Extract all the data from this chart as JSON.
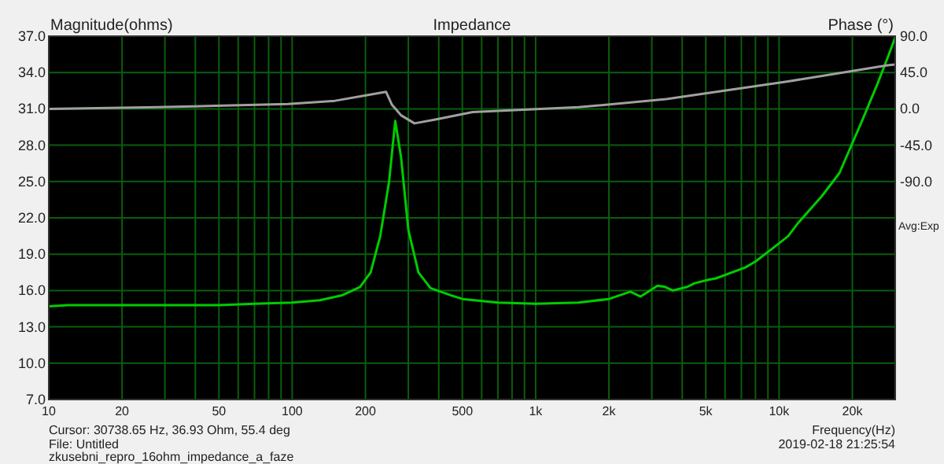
{
  "chart_data": {
    "type": "line",
    "title": "Impedance",
    "ylabel": "Magnitude(ohms)",
    "y2label": "Phase (°)",
    "xlabel": "Frequency(Hz)",
    "annotations": [
      "Cursor: 30738.65 Hz, 36.93 Ohm, 55.4 deg",
      "File: Untitled",
      "zkusebni_repro_16ohm_impedance_a_faze",
      "2019-02-18 21:25:54",
      "Avg:Exp"
    ],
    "series": [
      {
        "color": "#00cc00",
        "x": [
          10,
          12,
          20,
          50,
          70,
          100,
          130,
          160,
          190,
          210,
          230,
          250,
          265,
          280,
          300,
          330,
          370,
          450,
          500,
          700,
          1000,
          1500,
          2000,
          2450,
          2700,
          3170,
          3400,
          3660,
          4200,
          4500,
          5160,
          5500,
          7260,
          8000,
          10000,
          10900,
          12000,
          15000,
          17700,
          21900,
          25400,
          27900,
          30000
        ],
        "values": [
          14.7,
          14.8,
          14.8,
          14.8,
          14.9,
          15.0,
          15.2,
          15.6,
          16.3,
          17.5,
          20.5,
          25.0,
          30.0,
          27.0,
          21.0,
          17.5,
          16.2,
          15.6,
          15.3,
          15.0,
          14.9,
          15.0,
          15.3,
          15.9,
          15.5,
          16.4,
          16.3,
          16.0,
          16.3,
          16.6,
          16.9,
          17.0,
          17.9,
          18.4,
          19.9,
          20.5,
          21.6,
          23.8,
          25.7,
          30.0,
          33.1,
          35.2,
          36.9
        ]
      },
      {
        "color": "#a0a0a0",
        "axis": "y2",
        "x": [
          10,
          28,
          96,
          150,
          203,
          243,
          257,
          280,
          318,
          391,
          551,
          1500,
          3440,
          10900,
          27900,
          30000
        ],
        "values": [
          0,
          2,
          6,
          10,
          17,
          21,
          5,
          -8,
          -18,
          -13,
          -4,
          2,
          12,
          34,
          54,
          55
        ]
      }
    ],
    "xlim": [
      10,
      30000
    ],
    "log": "x",
    "xticks": [
      {
        "value": 10,
        "label": "10"
      },
      {
        "value": 20,
        "label": "20"
      },
      {
        "value": 30,
        "label": null
      },
      {
        "value": 40,
        "label": null
      },
      {
        "value": 50,
        "label": "50"
      },
      {
        "value": 60,
        "label": null
      },
      {
        "value": 70,
        "label": null
      },
      {
        "value": 80,
        "label": null
      },
      {
        "value": 90,
        "label": null
      },
      {
        "value": 100,
        "label": "100"
      },
      {
        "value": 200,
        "label": "200"
      },
      {
        "value": 300,
        "label": null
      },
      {
        "value": 400,
        "label": null
      },
      {
        "value": 500,
        "label": "500"
      },
      {
        "value": 600,
        "label": null
      },
      {
        "value": 700,
        "label": null
      },
      {
        "value": 800,
        "label": null
      },
      {
        "value": 900,
        "label": null
      },
      {
        "value": 1000,
        "label": "1k"
      },
      {
        "value": 2000,
        "label": "2k"
      },
      {
        "value": 3000,
        "label": null
      },
      {
        "value": 4000,
        "label": null
      },
      {
        "value": 5000,
        "label": "5k"
      },
      {
        "value": 6000,
        "label": null
      },
      {
        "value": 7000,
        "label": null
      },
      {
        "value": 8000,
        "label": null
      },
      {
        "value": 9000,
        "label": null
      },
      {
        "value": 10000,
        "label": "10k"
      },
      {
        "value": 20000,
        "label": "20k"
      }
    ],
    "ylim": [
      7,
      37
    ],
    "yticks": [
      {
        "value": 7,
        "label": "7.0"
      },
      {
        "value": 10,
        "label": "10.0"
      },
      {
        "value": 13,
        "label": "13.0"
      },
      {
        "value": 16,
        "label": "16.0"
      },
      {
        "value": 19,
        "label": "19.0"
      },
      {
        "value": 22,
        "label": "22.0"
      },
      {
        "value": 25,
        "label": "25.0"
      },
      {
        "value": 28,
        "label": "28.0"
      },
      {
        "value": 31,
        "label": "31.0"
      },
      {
        "value": 34,
        "label": "34.0"
      },
      {
        "value": 37,
        "label": "37.0"
      }
    ],
    "y2lim": [
      -360,
      90
    ],
    "y2ticks": [
      {
        "value": 90,
        "label": "90.0"
      },
      {
        "value": 45,
        "label": "45.0"
      },
      {
        "value": 0,
        "label": "0.0"
      },
      {
        "value": -45,
        "label": "-45.0"
      },
      {
        "value": -90,
        "label": "-90.0"
      }
    ],
    "grid": true
  }
}
